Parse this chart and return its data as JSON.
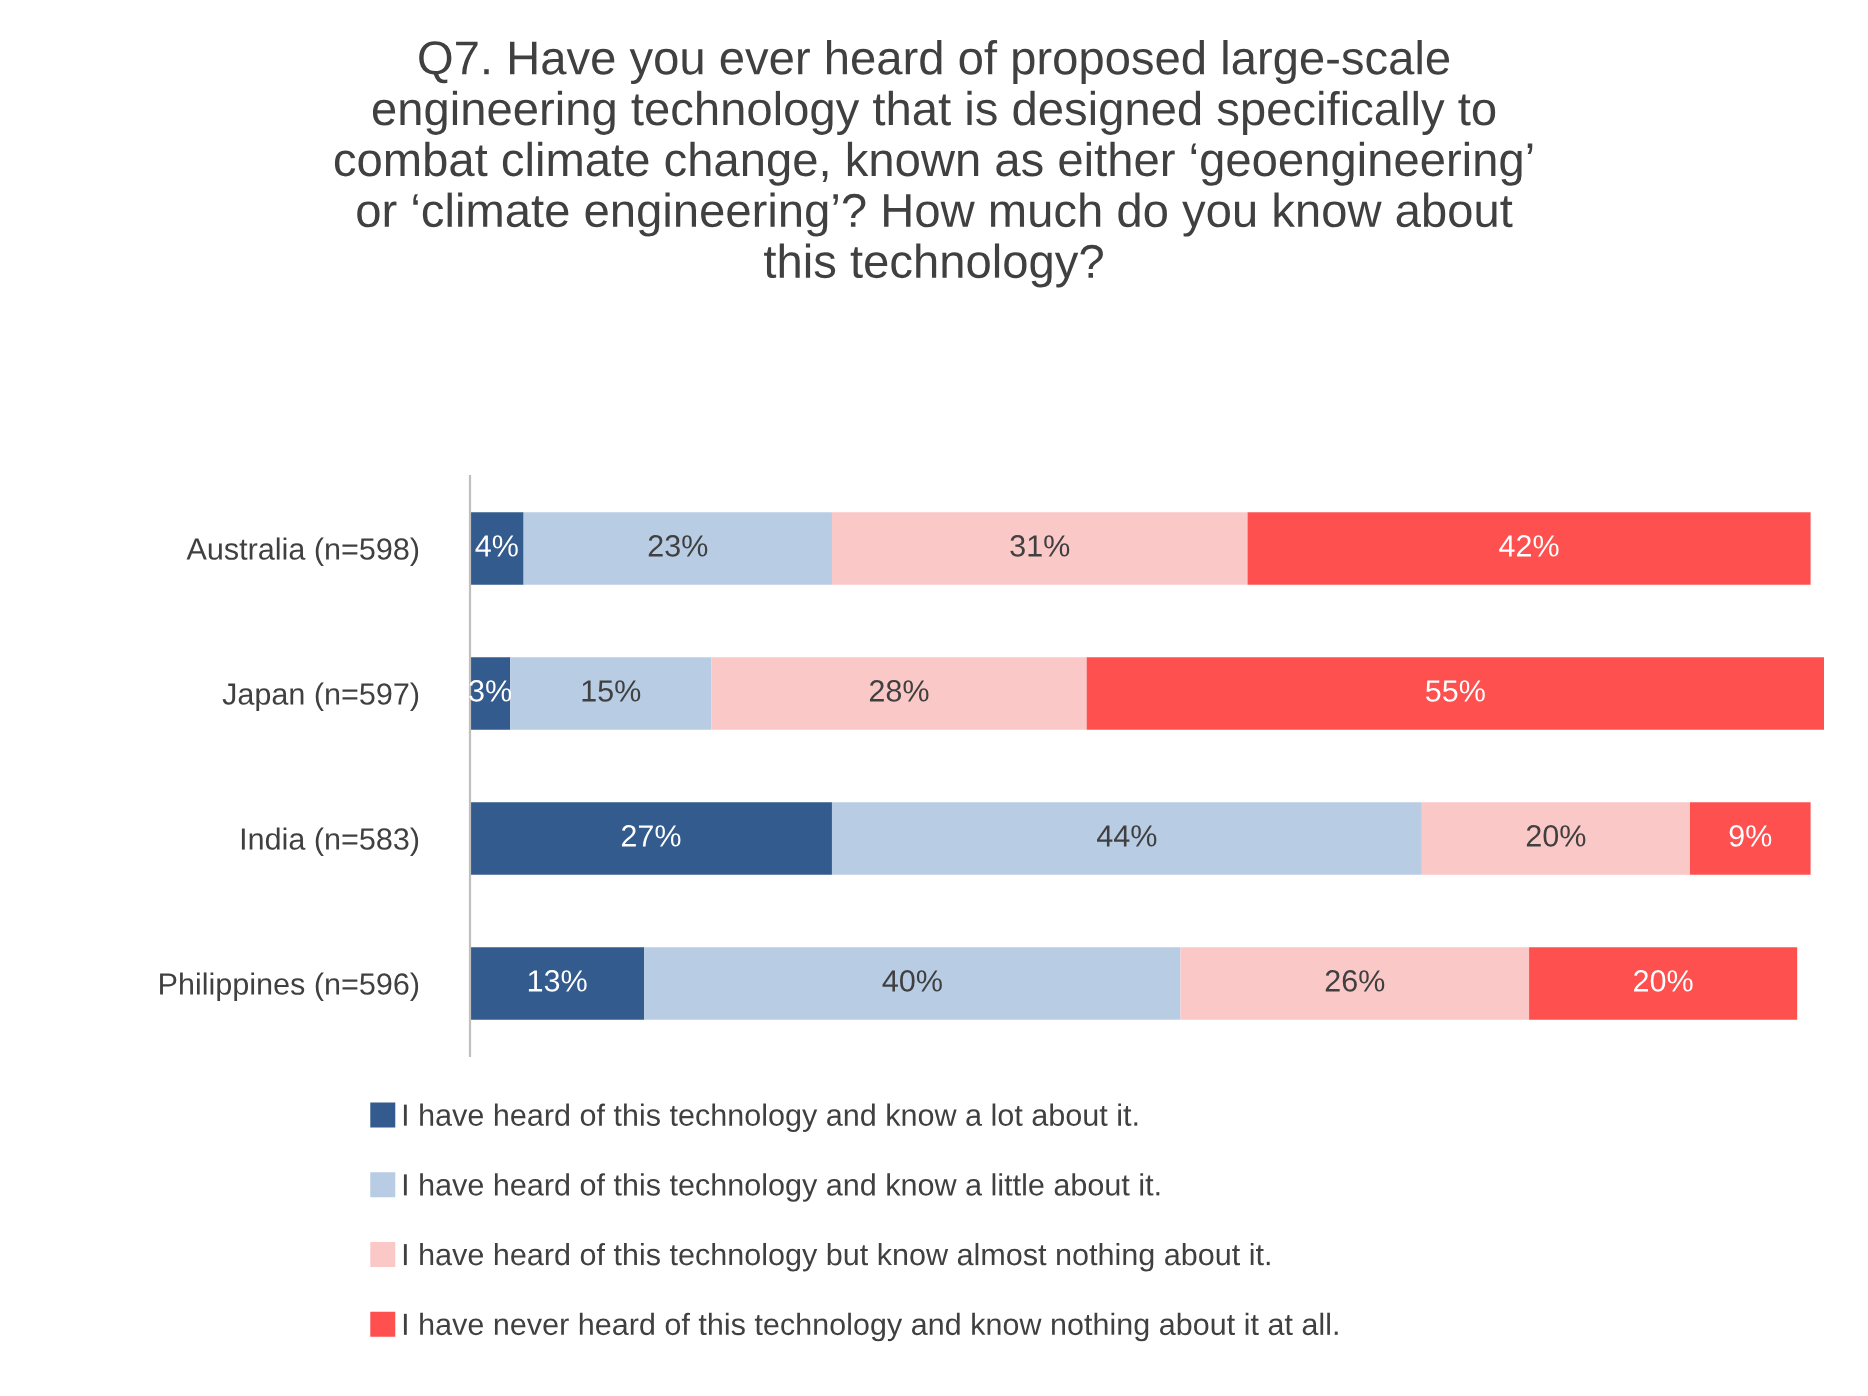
{
  "chart_data": {
    "type": "bar",
    "orientation": "horizontal",
    "stacked": true,
    "grid": false,
    "legend": "bottom",
    "marker": "square",
    "title": "Q7. Have you ever heard of proposed large-scale\nengineering technology that is designed specifically to\ncombat climate change, known as either ‘geoengineering’\nor ‘climate engineering’? How much do you know about\nthis technology?",
    "categories": [
      "Australia (n=598)",
      "Japan (n=597)",
      "India (n=583)",
      "Philippines (n=596)"
    ],
    "series": [
      {
        "name": "I have heard of this technology and know a lot about it.",
        "color": "#335b8e",
        "values": [
          4,
          3,
          27,
          13
        ],
        "value_labels": [
          "4%",
          "3%",
          "27%",
          "13%"
        ]
      },
      {
        "name": "I have heard of this technology and know a little about it.",
        "color": "#b8cce4",
        "values": [
          23,
          15,
          44,
          40
        ],
        "value_labels": [
          "23%",
          "15%",
          "44%",
          "40%"
        ]
      },
      {
        "name": "I have heard of this technology but know almost nothing about it.",
        "color": "#fbc8c8",
        "values": [
          31,
          28,
          20,
          26
        ],
        "value_labels": [
          "31%",
          "28%",
          "20%",
          "26%"
        ]
      },
      {
        "name": "I have never heard of this technology and know nothing about it at all.",
        "color": "#ff5050",
        "values": [
          42,
          55,
          9,
          20
        ],
        "value_labels": [
          "42%",
          "55%",
          "9%",
          "20%"
        ]
      }
    ]
  }
}
